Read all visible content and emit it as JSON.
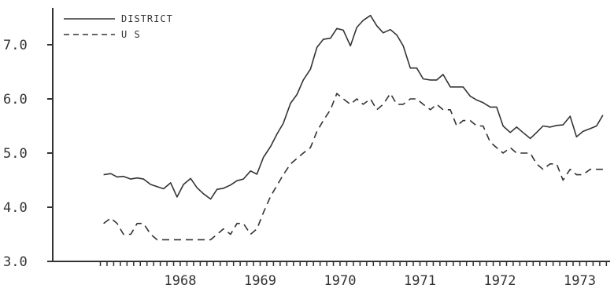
{
  "chart_data": {
    "type": "line",
    "title": "",
    "xlabel": "",
    "ylabel": "",
    "ylim": [
      3.0,
      7.6
    ],
    "y_ticks": [
      "3.0",
      "4.0",
      "5.0",
      "6.0",
      "7.0"
    ],
    "x_ticks": [
      "1968",
      "1969",
      "1970",
      "1971",
      "1972",
      "1973"
    ],
    "x_range_years": [
      1967.5,
      1973.85
    ],
    "grid": false,
    "legend_position": "top-left",
    "series": [
      {
        "name": "DISTRICT",
        "style": "solid",
        "color": "#333333",
        "x": [
          1967.54,
          1967.63,
          1967.71,
          1967.79,
          1967.88,
          1967.96,
          1968.04,
          1968.13,
          1968.21,
          1968.29,
          1968.38,
          1968.46,
          1968.54,
          1968.63,
          1968.71,
          1968.79,
          1968.88,
          1968.96,
          1969.04,
          1969.13,
          1969.21,
          1969.29,
          1969.38,
          1969.46,
          1969.54,
          1969.63,
          1969.71,
          1969.79,
          1969.88,
          1969.96,
          1970.04,
          1970.13,
          1970.21,
          1970.29,
          1970.38,
          1970.46,
          1970.54,
          1970.63,
          1970.71,
          1970.79,
          1970.88,
          1970.96,
          1971.04,
          1971.13,
          1971.21,
          1971.29,
          1971.38,
          1971.46,
          1971.54,
          1971.63,
          1971.71,
          1971.79,
          1971.88,
          1971.96,
          1972.04,
          1972.13,
          1972.21,
          1972.29,
          1972.38,
          1972.46,
          1972.54,
          1972.63,
          1972.71,
          1972.79,
          1972.88,
          1972.96,
          1973.04,
          1973.13,
          1973.21,
          1973.29,
          1973.38,
          1973.46,
          1973.54,
          1973.63,
          1973.71,
          1973.79
        ],
        "values": [
          4.6,
          4.62,
          4.56,
          4.57,
          4.52,
          4.54,
          4.52,
          4.42,
          4.38,
          4.34,
          4.45,
          4.19,
          4.42,
          4.53,
          4.36,
          4.25,
          4.15,
          4.33,
          4.35,
          4.41,
          4.49,
          4.52,
          4.67,
          4.61,
          4.92,
          5.12,
          5.35,
          5.55,
          5.92,
          6.08,
          6.35,
          6.55,
          6.95,
          7.1,
          7.12,
          7.3,
          7.27,
          6.98,
          7.32,
          7.45,
          7.54,
          7.35,
          7.22,
          7.28,
          7.18,
          6.98,
          6.57,
          6.57,
          6.37,
          6.35,
          6.35,
          6.45,
          6.22,
          6.22,
          6.22,
          6.05,
          5.98,
          5.93,
          5.85,
          5.85,
          5.5,
          5.38,
          5.48,
          5.38,
          5.27,
          5.38,
          5.5,
          5.48,
          5.51,
          5.52,
          5.68,
          5.3,
          5.4,
          5.45,
          5.5,
          5.7
        ]
      },
      {
        "name": "U S",
        "style": "dashed",
        "color": "#333333",
        "x": [
          1967.54,
          1967.63,
          1967.71,
          1967.79,
          1967.88,
          1967.96,
          1968.04,
          1968.13,
          1968.21,
          1968.29,
          1968.38,
          1968.46,
          1968.54,
          1968.63,
          1968.71,
          1968.79,
          1968.88,
          1968.96,
          1969.04,
          1969.13,
          1969.21,
          1969.29,
          1969.38,
          1969.46,
          1969.54,
          1969.63,
          1969.71,
          1969.79,
          1969.88,
          1969.96,
          1970.04,
          1970.13,
          1970.21,
          1970.29,
          1970.38,
          1970.46,
          1970.54,
          1970.63,
          1970.71,
          1970.79,
          1970.88,
          1970.96,
          1971.04,
          1971.13,
          1971.21,
          1971.29,
          1971.38,
          1971.46,
          1971.54,
          1971.63,
          1971.71,
          1971.79,
          1971.88,
          1971.96,
          1972.04,
          1972.13,
          1972.21,
          1972.29,
          1972.38,
          1972.46,
          1972.54,
          1972.63,
          1972.71,
          1972.79,
          1972.88,
          1972.96,
          1973.04,
          1973.13,
          1973.21,
          1973.29,
          1973.38,
          1973.46,
          1973.54,
          1973.63,
          1973.71,
          1973.79
        ],
        "values": [
          3.7,
          3.8,
          3.7,
          3.5,
          3.5,
          3.7,
          3.7,
          3.5,
          3.4,
          3.4,
          3.4,
          3.4,
          3.4,
          3.4,
          3.4,
          3.4,
          3.4,
          3.5,
          3.6,
          3.5,
          3.7,
          3.7,
          3.5,
          3.6,
          3.9,
          4.2,
          4.4,
          4.6,
          4.8,
          4.9,
          5.0,
          5.1,
          5.4,
          5.6,
          5.8,
          6.1,
          6.0,
          5.9,
          6.0,
          5.9,
          6.0,
          5.8,
          5.9,
          6.1,
          5.9,
          5.9,
          6.0,
          6.0,
          5.9,
          5.8,
          5.9,
          5.8,
          5.8,
          5.5,
          5.6,
          5.6,
          5.5,
          5.5,
          5.2,
          5.1,
          5.0,
          5.1,
          5.0,
          5.0,
          5.0,
          4.8,
          4.7,
          4.8,
          4.8,
          4.5,
          4.7,
          4.6,
          4.6,
          4.7,
          4.7,
          4.7
        ]
      }
    ]
  }
}
